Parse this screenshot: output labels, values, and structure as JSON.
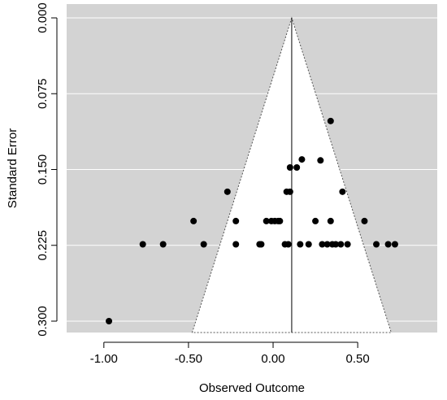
{
  "chart_data": {
    "type": "scatter",
    "subtype": "funnel-plot",
    "title": "",
    "xlabel": "Observed Outcome",
    "ylabel": "Standard Error",
    "xlim": [
      -1.22,
      0.97
    ],
    "ylim": [
      0.3,
      0.0
    ],
    "y_axis_reversed": true,
    "x_ticks": [
      -1.0,
      -0.5,
      0.0,
      0.5
    ],
    "x_tick_labels": [
      "-1.00",
      "-0.50",
      "0.00",
      "0.50"
    ],
    "y_ticks": [
      0.0,
      0.075,
      0.15,
      0.225,
      0.3
    ],
    "y_tick_labels": [
      "0.000",
      "0.075",
      "0.150",
      "0.225",
      "0.300"
    ],
    "grid": true,
    "grid_axis": "y",
    "pooled_estimate": 0.11,
    "funnel_multiplier": 1.96,
    "colors": {
      "background": "#d3d3d3",
      "funnel_fill": "#ffffff",
      "grid": "#ffffff",
      "points": "#000000",
      "reference_line": "#000000"
    },
    "x": [
      0.34,
      0.17,
      0.28,
      0.1,
      0.14,
      -0.27,
      0.08,
      0.1,
      0.41,
      -0.47,
      -0.22,
      -0.04,
      -0.01,
      0.01,
      0.03,
      0.04,
      0.25,
      0.34,
      0.54,
      -0.97,
      -0.77,
      -0.65,
      -0.41,
      -0.22,
      -0.08,
      -0.07,
      0.07,
      0.09,
      0.16,
      0.21,
      0.29,
      0.32,
      0.35,
      0.37,
      0.4,
      0.44,
      0.61,
      0.68,
      0.72
    ],
    "y": [
      0.102,
      0.14,
      0.141,
      0.148,
      0.148,
      0.172,
      0.172,
      0.172,
      0.172,
      0.201,
      0.201,
      0.201,
      0.201,
      0.201,
      0.201,
      0.201,
      0.201,
      0.201,
      0.201,
      0.3,
      0.224,
      0.224,
      0.224,
      0.224,
      0.224,
      0.224,
      0.224,
      0.224,
      0.224,
      0.224,
      0.224,
      0.224,
      0.224,
      0.224,
      0.224,
      0.224,
      0.224,
      0.224,
      0.224
    ]
  }
}
